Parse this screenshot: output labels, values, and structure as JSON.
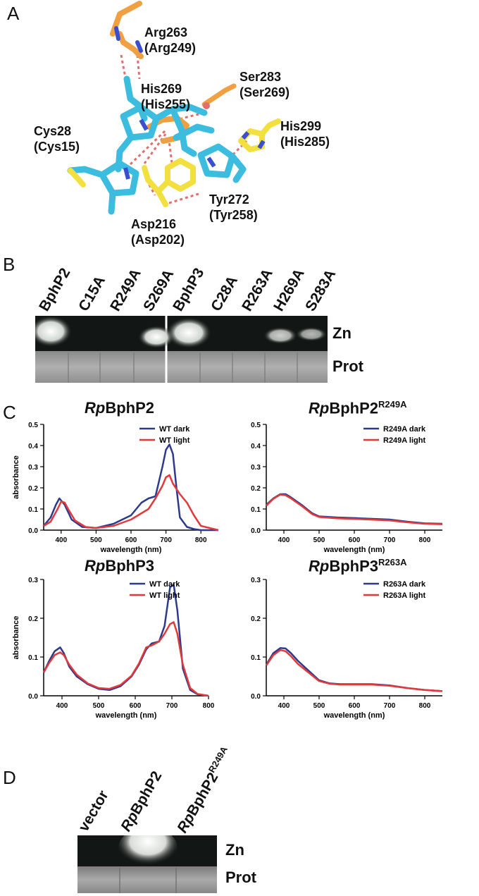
{
  "panels": {
    "A": "A",
    "B": "B",
    "C": "C",
    "D": "D"
  },
  "structure_labels": [
    {
      "name": "Arg263",
      "alt": "(Arg249)"
    },
    {
      "name": "His269",
      "alt": "(His255)"
    },
    {
      "name": "Ser283",
      "alt": "(Ser269)"
    },
    {
      "name": "Cys28",
      "alt": "(Cys15)"
    },
    {
      "name": "His299",
      "alt": "(His285)"
    },
    {
      "name": "Tyr272",
      "alt": "(Tyr258)"
    },
    {
      "name": "Asp216",
      "alt": "(Asp202)"
    }
  ],
  "gel_b": {
    "lanes": [
      "BphP2",
      "C15A",
      "R249A",
      "S269A",
      "BphP3",
      "C28A",
      "R263A",
      "H269A",
      "S283A"
    ],
    "zn_label": "Zn",
    "prot_label": "Prot"
  },
  "gel_d": {
    "lanes": [
      "vector",
      "RpBphP2",
      "RpBphP2R249A"
    ],
    "lane_parts": {
      "lane2": {
        "italic": "Rp",
        "rest": "BphP2"
      },
      "lane3": {
        "italic": "Rp",
        "rest": "BphP2",
        "sup": "R249A"
      }
    },
    "zn_label": "Zn",
    "prot_label": "Prot"
  },
  "colors": {
    "dark": "#2b3a8f",
    "light": "#e23a3a",
    "carbon_cyan": "#3cbde0",
    "carbon_orange": "#f0a040",
    "carbon_yellow": "#f2e040"
  },
  "chart_data": [
    {
      "type": "line",
      "title": {
        "italic": "Rp",
        "rest": "BphP2",
        "sup": ""
      },
      "xlabel": "wavelength (nm)",
      "ylabel": "absorbance",
      "xlim": [
        350,
        850
      ],
      "ylim": [
        0,
        0.5
      ],
      "xticks": [
        400,
        500,
        600,
        700,
        800
      ],
      "yticks": [
        0.0,
        0.1,
        0.2,
        0.3,
        0.4,
        0.5
      ],
      "ytick_labels": [
        "0.0",
        "0.1",
        "0.2",
        "0.3",
        "0.4",
        "0.5"
      ],
      "legend_position": "top-right",
      "series": [
        {
          "name": "WT dark",
          "color": "#2b3a8f",
          "x": [
            350,
            370,
            385,
            395,
            410,
            430,
            460,
            500,
            550,
            600,
            630,
            650,
            670,
            690,
            700,
            710,
            720,
            730,
            740,
            760,
            780,
            800,
            850
          ],
          "y": [
            0.02,
            0.06,
            0.12,
            0.15,
            0.12,
            0.05,
            0.015,
            0.01,
            0.03,
            0.07,
            0.13,
            0.15,
            0.16,
            0.3,
            0.38,
            0.405,
            0.36,
            0.2,
            0.06,
            0.015,
            0.005,
            0.0,
            0.0
          ]
        },
        {
          "name": "WT light",
          "color": "#e23a3a",
          "x": [
            350,
            370,
            390,
            400,
            410,
            420,
            440,
            470,
            500,
            550,
            600,
            630,
            650,
            670,
            690,
            700,
            710,
            720,
            740,
            760,
            780,
            800,
            850
          ],
          "y": [
            0.02,
            0.04,
            0.1,
            0.135,
            0.13,
            0.1,
            0.045,
            0.015,
            0.01,
            0.02,
            0.05,
            0.08,
            0.1,
            0.15,
            0.21,
            0.25,
            0.26,
            0.22,
            0.17,
            0.13,
            0.07,
            0.02,
            0.0
          ]
        }
      ]
    },
    {
      "type": "line",
      "title": {
        "italic": "Rp",
        "rest": "BphP2",
        "sup": "R249A"
      },
      "xlabel": "wavelength (nm)",
      "ylabel": "",
      "xlim": [
        350,
        850
      ],
      "ylim": [
        0,
        0.5
      ],
      "xticks": [
        400,
        500,
        600,
        700,
        800
      ],
      "yticks": [
        0.0,
        0.1,
        0.2,
        0.3,
        0.4,
        0.5
      ],
      "ytick_labels": [
        "0.0",
        "0.1",
        "0.2",
        "0.3",
        "0.4",
        "0.5"
      ],
      "legend_position": "top-right",
      "series": [
        {
          "name": "R249A dark",
          "color": "#2b3a8f",
          "x": [
            350,
            370,
            390,
            405,
            420,
            450,
            480,
            500,
            550,
            600,
            700,
            750,
            800,
            850
          ],
          "y": [
            0.12,
            0.15,
            0.17,
            0.17,
            0.155,
            0.12,
            0.08,
            0.065,
            0.06,
            0.057,
            0.05,
            0.04,
            0.032,
            0.03
          ]
        },
        {
          "name": "R249A light",
          "color": "#e23a3a",
          "x": [
            350,
            370,
            390,
            405,
            420,
            450,
            480,
            500,
            550,
            600,
            700,
            750,
            800,
            850
          ],
          "y": [
            0.115,
            0.148,
            0.168,
            0.165,
            0.15,
            0.115,
            0.076,
            0.062,
            0.056,
            0.053,
            0.046,
            0.037,
            0.03,
            0.028
          ]
        }
      ]
    },
    {
      "type": "line",
      "title": {
        "italic": "Rp",
        "rest": "BphP3",
        "sup": ""
      },
      "xlabel": "wavelength (nm)",
      "ylabel": "absorbance",
      "xlim": [
        350,
        800
      ],
      "ylim": [
        0,
        0.3
      ],
      "xticks": [
        400,
        500,
        600,
        700,
        800
      ],
      "yticks": [
        0.0,
        0.1,
        0.2,
        0.3
      ],
      "ytick_labels": [
        "0.0",
        "0.1",
        "0.2",
        "0.3"
      ],
      "legend_position": "top-right",
      "series": [
        {
          "name": "WT dark",
          "color": "#2b3a8f",
          "x": [
            350,
            365,
            380,
            395,
            405,
            420,
            440,
            470,
            500,
            530,
            560,
            590,
            610,
            630,
            645,
            665,
            680,
            695,
            705,
            715,
            730,
            750,
            770,
            800
          ],
          "y": [
            0.06,
            0.09,
            0.115,
            0.125,
            0.11,
            0.075,
            0.05,
            0.03,
            0.018,
            0.015,
            0.025,
            0.05,
            0.08,
            0.12,
            0.135,
            0.14,
            0.18,
            0.28,
            0.287,
            0.22,
            0.07,
            0.015,
            0.004,
            0.0
          ]
        },
        {
          "name": "WT light",
          "color": "#e23a3a",
          "x": [
            350,
            365,
            380,
            395,
            405,
            420,
            440,
            470,
            500,
            530,
            560,
            590,
            610,
            630,
            645,
            665,
            680,
            695,
            705,
            715,
            730,
            750,
            770,
            800
          ],
          "y": [
            0.06,
            0.085,
            0.105,
            0.112,
            0.105,
            0.08,
            0.055,
            0.032,
            0.02,
            0.018,
            0.028,
            0.052,
            0.083,
            0.125,
            0.13,
            0.14,
            0.16,
            0.185,
            0.19,
            0.16,
            0.08,
            0.02,
            0.005,
            0.0
          ]
        }
      ]
    },
    {
      "type": "line",
      "title": {
        "italic": "Rp",
        "rest": "BphP3",
        "sup": "R263A"
      },
      "xlabel": "wavelength (nm)",
      "ylabel": "",
      "xlim": [
        350,
        850
      ],
      "ylim": [
        0,
        0.3
      ],
      "xticks": [
        400,
        500,
        600,
        700,
        800
      ],
      "yticks": [
        0.0,
        0.1,
        0.2,
        0.3
      ],
      "ytick_labels": [
        "0.0",
        "0.1",
        "0.2",
        "0.3"
      ],
      "legend_position": "top-right",
      "series": [
        {
          "name": "R263A dark",
          "color": "#2b3a8f",
          "x": [
            350,
            370,
            390,
            405,
            420,
            440,
            470,
            500,
            530,
            560,
            600,
            650,
            700,
            750,
            800,
            850
          ],
          "y": [
            0.08,
            0.11,
            0.123,
            0.122,
            0.11,
            0.09,
            0.065,
            0.04,
            0.032,
            0.03,
            0.03,
            0.03,
            0.027,
            0.02,
            0.015,
            0.012
          ]
        },
        {
          "name": "R263A light",
          "color": "#e23a3a",
          "x": [
            350,
            370,
            390,
            405,
            420,
            440,
            470,
            500,
            530,
            560,
            600,
            650,
            700,
            750,
            800,
            850
          ],
          "y": [
            0.078,
            0.105,
            0.118,
            0.115,
            0.102,
            0.082,
            0.06,
            0.038,
            0.031,
            0.029,
            0.029,
            0.029,
            0.026,
            0.02,
            0.015,
            0.012
          ]
        }
      ]
    }
  ]
}
